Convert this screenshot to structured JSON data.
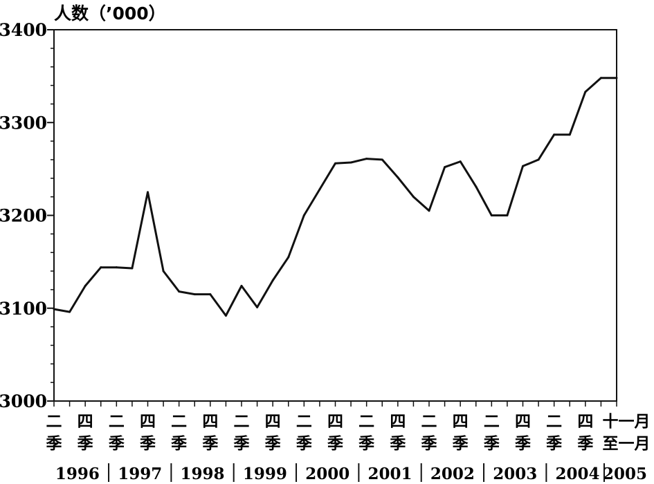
{
  "chart_data": {
    "type": "line",
    "ylabel": "人数（’000）",
    "ylim": [
      3000,
      3400
    ],
    "yticks": [
      3000,
      3100,
      3200,
      3300,
      3400
    ],
    "x": [
      "1996 Q1",
      "1996 Q2",
      "1996 Q3",
      "1996 Q4",
      "1997 Q1",
      "1997 Q2",
      "1997 Q3",
      "1997 Q4",
      "1998 Q1",
      "1998 Q2",
      "1998 Q3",
      "1998 Q4",
      "1999 Q1",
      "1999 Q2",
      "1999 Q3",
      "1999 Q4",
      "2000 Q1",
      "2000 Q2",
      "2000 Q3",
      "2000 Q4",
      "2001 Q1",
      "2001 Q2",
      "2001 Q3",
      "2001 Q4",
      "2002 Q1",
      "2002 Q2",
      "2002 Q3",
      "2002 Q4",
      "2003 Q1",
      "2003 Q2",
      "2003 Q3",
      "2003 Q4",
      "2004 Q1",
      "2004 Q2",
      "2004 Q3",
      "2004 Q4",
      "2004 Nov - 2005 Jan"
    ],
    "series": [
      {
        "values": [
          3099,
          3096,
          3124,
          3144,
          3144,
          3143,
          3225,
          3140,
          3118,
          3115,
          3115,
          3092,
          3124,
          3101,
          3130,
          3155,
          3200,
          3228,
          3256,
          3257,
          3261,
          3260,
          3241,
          3220,
          3205,
          3252,
          3258,
          3231,
          3200,
          3200,
          3253,
          3260,
          3287,
          3287,
          3333,
          3348,
          3348
        ]
      }
    ],
    "x_tick_labels": [
      {
        "top": "二",
        "bottom": "季"
      },
      {
        "top": "四",
        "bottom": "季"
      },
      {
        "top": "二",
        "bottom": "季"
      },
      {
        "top": "四",
        "bottom": "季"
      },
      {
        "top": "二",
        "bottom": "季"
      },
      {
        "top": "四",
        "bottom": "季"
      },
      {
        "top": "二",
        "bottom": "季"
      },
      {
        "top": "四",
        "bottom": "季"
      },
      {
        "top": "二",
        "bottom": "季"
      },
      {
        "top": "四",
        "bottom": "季"
      },
      {
        "top": "二",
        "bottom": "季"
      },
      {
        "top": "四",
        "bottom": "季"
      },
      {
        "top": "二",
        "bottom": "季"
      },
      {
        "top": "四",
        "bottom": "季"
      },
      {
        "top": "二",
        "bottom": "季"
      },
      {
        "top": "四",
        "bottom": "季"
      },
      {
        "top": "二",
        "bottom": "季"
      },
      {
        "top": "四",
        "bottom": "季"
      },
      {
        "top": "十一月",
        "bottom": "至一月"
      }
    ],
    "year_labels": [
      "1996",
      "1997",
      "1998",
      "1999",
      "2000",
      "2001",
      "2002",
      "2003",
      "2004",
      "2005"
    ],
    "grid": false,
    "line_color": "#111111"
  }
}
